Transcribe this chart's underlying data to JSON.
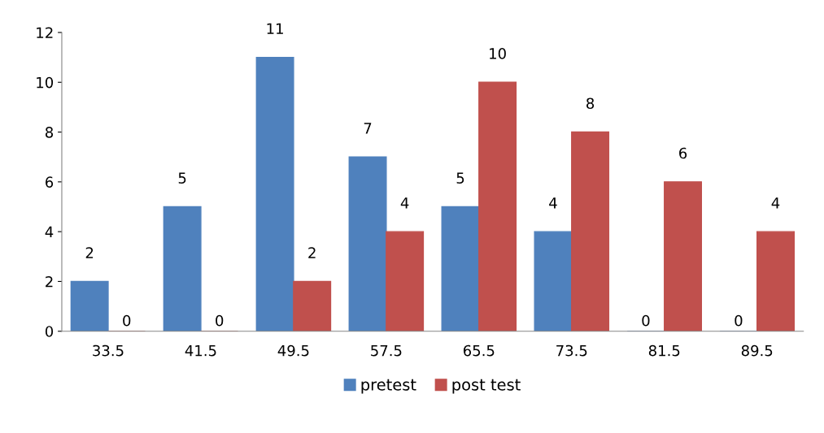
{
  "chart_data": {
    "type": "bar",
    "categories": [
      "33.5",
      "41.5",
      "49.5",
      "57.5",
      "65.5",
      "73.5",
      "81.5",
      "89.5"
    ],
    "series": [
      {
        "name": "pretest",
        "color": "#4f81bd",
        "values": [
          2,
          5,
          11,
          7,
          5,
          4,
          0,
          0
        ]
      },
      {
        "name": "post test",
        "color": "#c0504d",
        "values": [
          0,
          0,
          2,
          4,
          10,
          8,
          6,
          4
        ]
      }
    ],
    "ylim": [
      0,
      12
    ],
    "yticks": [
      0,
      2,
      4,
      6,
      8,
      10,
      12
    ],
    "data_labels": true,
    "grid": false,
    "legend": "bottom"
  }
}
